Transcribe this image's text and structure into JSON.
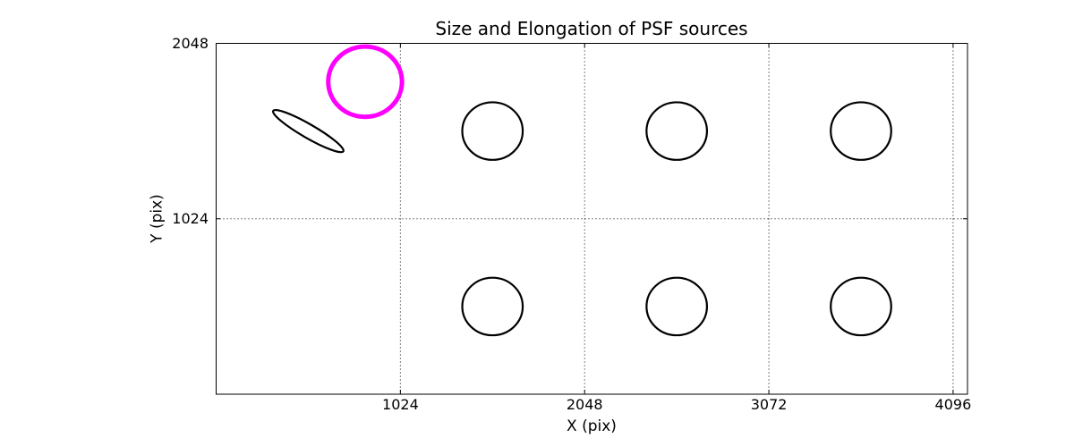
{
  "figure": {
    "title": "Size and Elongation of PSF sources",
    "x_axis": {
      "label": "X (pix)",
      "tick_labels": [
        "1024",
        "2048",
        "3072",
        "4096"
      ]
    },
    "y_axis": {
      "label": "Y (pix)",
      "tick_labels": [
        "1024",
        "2048"
      ]
    }
  },
  "colors": {
    "highlight": "#ff00ff",
    "default": "#000000",
    "background": "#ffffff"
  },
  "chart_data": {
    "type": "scatter",
    "title": "Size and Elongation of PSF sources",
    "xlabel": "X (pix)",
    "ylabel": "Y (pix)",
    "xlim": [
      0,
      4176
    ],
    "ylim": [
      0,
      2048
    ],
    "x_ticks": [
      1024,
      2048,
      3072,
      4096
    ],
    "y_ticks": [
      1024,
      2048
    ],
    "grid": "dotted",
    "legend": "none",
    "sources": [
      {
        "x": 512,
        "y": 1536,
        "semi_major": 225,
        "semi_minor": 40,
        "angle_deg": -30,
        "color": "#000000",
        "line_width": 2.2,
        "kind": "elongated-ellipse"
      },
      {
        "x": 828,
        "y": 1824,
        "semi_major": 205,
        "semi_minor": 205,
        "angle_deg": 0,
        "color": "#ff00ff",
        "line_width": 5,
        "kind": "highlighted-circle"
      },
      {
        "x": 1536,
        "y": 1536,
        "semi_major": 168,
        "semi_minor": 168,
        "angle_deg": 0,
        "color": "#000000",
        "line_width": 2.2,
        "kind": "circle"
      },
      {
        "x": 2560,
        "y": 1536,
        "semi_major": 168,
        "semi_minor": 168,
        "angle_deg": 0,
        "color": "#000000",
        "line_width": 2.2,
        "kind": "circle"
      },
      {
        "x": 3584,
        "y": 1536,
        "semi_major": 168,
        "semi_minor": 168,
        "angle_deg": 0,
        "color": "#000000",
        "line_width": 2.2,
        "kind": "circle"
      },
      {
        "x": 1536,
        "y": 512,
        "semi_major": 168,
        "semi_minor": 168,
        "angle_deg": 0,
        "color": "#000000",
        "line_width": 2.2,
        "kind": "circle"
      },
      {
        "x": 2560,
        "y": 512,
        "semi_major": 168,
        "semi_minor": 168,
        "angle_deg": 0,
        "color": "#000000",
        "line_width": 2.2,
        "kind": "circle"
      },
      {
        "x": 3584,
        "y": 512,
        "semi_major": 168,
        "semi_minor": 168,
        "angle_deg": 0,
        "color": "#000000",
        "line_width": 2.2,
        "kind": "circle"
      }
    ]
  }
}
